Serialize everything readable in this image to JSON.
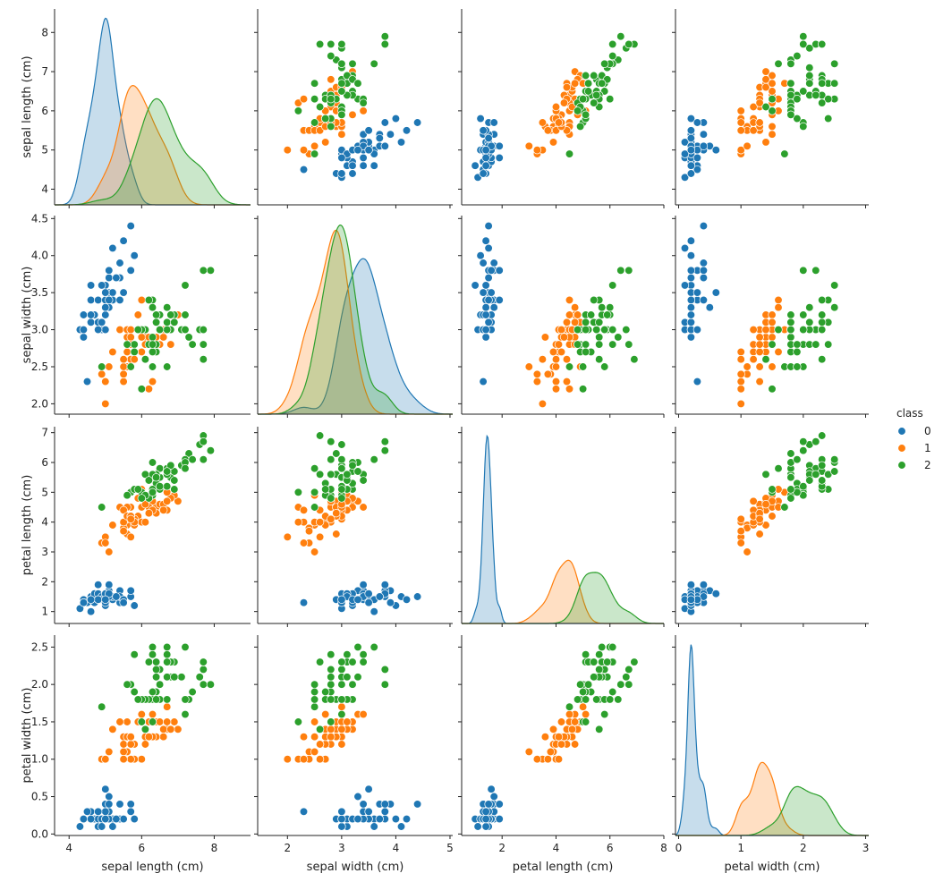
{
  "chart_data": {
    "type": "pairplot",
    "variables": [
      "sepal length (cm)",
      "sepal width (cm)",
      "petal length (cm)",
      "petal width (cm)"
    ],
    "diagonal": "kde",
    "offdiagonal": "scatter",
    "axis_ranges": [
      [
        3.6,
        8.6
      ],
      [
        1.86,
        4.54
      ],
      [
        0.6,
        7.2
      ],
      [
        -0.02,
        2.66
      ]
    ],
    "ticks": [
      [
        4,
        5,
        6,
        7,
        8
      ],
      [
        2.0,
        2.5,
        3.0,
        3.5,
        4.0,
        4.5
      ],
      [
        1,
        2,
        3,
        4,
        5,
        6,
        7
      ],
      [
        0.0,
        0.5,
        1.0,
        1.5,
        2.0,
        2.5
      ]
    ],
    "x_ticks": [
      [
        4,
        6,
        8
      ],
      [
        2,
        3,
        4,
        5
      ],
      [
        2,
        4,
        6,
        8
      ],
      [
        0,
        1,
        2,
        3
      ]
    ],
    "x_limits": [
      [
        3.6,
        9.0
      ],
      [
        1.45,
        5.05
      ],
      [
        0.5,
        8.0
      ],
      [
        -0.05,
        3.05
      ]
    ],
    "legend": {
      "title": "class",
      "placement": "right",
      "entries": [
        {
          "label": "0",
          "color": "#1f77b4"
        },
        {
          "label": "1",
          "color": "#ff7f0e"
        },
        {
          "label": "2",
          "color": "#2ca02c"
        }
      ]
    },
    "series": [
      {
        "class": "0",
        "color": "#1f77b4",
        "points": [
          [
            5.1,
            3.5,
            1.4,
            0.2
          ],
          [
            4.9,
            3.0,
            1.4,
            0.2
          ],
          [
            4.7,
            3.2,
            1.3,
            0.2
          ],
          [
            4.6,
            3.1,
            1.5,
            0.2
          ],
          [
            5.0,
            3.6,
            1.4,
            0.2
          ],
          [
            5.4,
            3.9,
            1.7,
            0.4
          ],
          [
            4.6,
            3.4,
            1.4,
            0.3
          ],
          [
            5.0,
            3.4,
            1.5,
            0.2
          ],
          [
            4.4,
            2.9,
            1.4,
            0.2
          ],
          [
            4.9,
            3.1,
            1.5,
            0.1
          ],
          [
            5.4,
            3.7,
            1.5,
            0.2
          ],
          [
            4.8,
            3.4,
            1.6,
            0.2
          ],
          [
            4.8,
            3.0,
            1.4,
            0.1
          ],
          [
            4.3,
            3.0,
            1.1,
            0.1
          ],
          [
            5.8,
            4.0,
            1.2,
            0.2
          ],
          [
            5.7,
            4.4,
            1.5,
            0.4
          ],
          [
            5.4,
            3.9,
            1.3,
            0.4
          ],
          [
            5.1,
            3.5,
            1.4,
            0.3
          ],
          [
            5.7,
            3.8,
            1.7,
            0.3
          ],
          [
            5.1,
            3.8,
            1.5,
            0.3
          ],
          [
            5.4,
            3.4,
            1.7,
            0.2
          ],
          [
            5.1,
            3.7,
            1.5,
            0.4
          ],
          [
            4.6,
            3.6,
            1.0,
            0.2
          ],
          [
            5.1,
            3.3,
            1.7,
            0.5
          ],
          [
            4.8,
            3.4,
            1.9,
            0.2
          ],
          [
            5.0,
            3.0,
            1.6,
            0.2
          ],
          [
            5.0,
            3.4,
            1.6,
            0.4
          ],
          [
            5.2,
            3.5,
            1.5,
            0.2
          ],
          [
            5.2,
            3.4,
            1.4,
            0.2
          ],
          [
            4.7,
            3.2,
            1.6,
            0.2
          ],
          [
            4.8,
            3.1,
            1.6,
            0.2
          ],
          [
            5.4,
            3.4,
            1.5,
            0.4
          ],
          [
            5.2,
            4.1,
            1.5,
            0.1
          ],
          [
            5.5,
            4.2,
            1.4,
            0.2
          ],
          [
            4.9,
            3.1,
            1.5,
            0.2
          ],
          [
            5.0,
            3.2,
            1.2,
            0.2
          ],
          [
            5.5,
            3.5,
            1.3,
            0.2
          ],
          [
            4.9,
            3.6,
            1.4,
            0.1
          ],
          [
            4.4,
            3.0,
            1.3,
            0.2
          ],
          [
            5.1,
            3.4,
            1.5,
            0.2
          ],
          [
            5.0,
            3.5,
            1.3,
            0.3
          ],
          [
            4.5,
            2.3,
            1.3,
            0.3
          ],
          [
            4.4,
            3.2,
            1.3,
            0.2
          ],
          [
            5.0,
            3.5,
            1.6,
            0.6
          ],
          [
            5.1,
            3.8,
            1.9,
            0.4
          ],
          [
            4.8,
            3.0,
            1.4,
            0.3
          ],
          [
            5.1,
            3.8,
            1.6,
            0.2
          ],
          [
            4.6,
            3.2,
            1.4,
            0.2
          ],
          [
            5.3,
            3.7,
            1.5,
            0.2
          ],
          [
            5.0,
            3.3,
            1.4,
            0.2
          ]
        ]
      },
      {
        "class": "1",
        "color": "#ff7f0e",
        "points": [
          [
            7.0,
            3.2,
            4.7,
            1.4
          ],
          [
            6.4,
            3.2,
            4.5,
            1.5
          ],
          [
            6.9,
            3.1,
            4.9,
            1.5
          ],
          [
            5.5,
            2.3,
            4.0,
            1.3
          ],
          [
            6.5,
            2.8,
            4.6,
            1.5
          ],
          [
            5.7,
            2.8,
            4.5,
            1.3
          ],
          [
            6.3,
            3.3,
            4.7,
            1.6
          ],
          [
            4.9,
            2.4,
            3.3,
            1.0
          ],
          [
            6.6,
            2.9,
            4.6,
            1.3
          ],
          [
            5.2,
            2.7,
            3.9,
            1.4
          ],
          [
            5.0,
            2.0,
            3.5,
            1.0
          ],
          [
            5.9,
            3.0,
            4.2,
            1.5
          ],
          [
            6.0,
            2.2,
            4.0,
            1.0
          ],
          [
            6.1,
            2.9,
            4.7,
            1.4
          ],
          [
            5.6,
            2.9,
            3.6,
            1.3
          ],
          [
            6.7,
            3.1,
            4.4,
            1.4
          ],
          [
            5.6,
            3.0,
            4.5,
            1.5
          ],
          [
            5.8,
            2.7,
            4.1,
            1.0
          ],
          [
            6.2,
            2.2,
            4.5,
            1.5
          ],
          [
            5.6,
            2.5,
            3.9,
            1.1
          ],
          [
            5.9,
            3.2,
            4.8,
            1.8
          ],
          [
            6.1,
            2.8,
            4.0,
            1.3
          ],
          [
            6.3,
            2.5,
            4.9,
            1.5
          ],
          [
            6.1,
            2.8,
            4.7,
            1.2
          ],
          [
            6.4,
            2.9,
            4.3,
            1.3
          ],
          [
            6.6,
            3.0,
            4.4,
            1.4
          ],
          [
            6.8,
            2.8,
            4.8,
            1.4
          ],
          [
            6.7,
            3.0,
            5.0,
            1.7
          ],
          [
            6.0,
            2.9,
            4.5,
            1.5
          ],
          [
            5.7,
            2.6,
            3.5,
            1.0
          ],
          [
            5.5,
            2.4,
            3.8,
            1.1
          ],
          [
            5.5,
            2.4,
            3.7,
            1.0
          ],
          [
            5.8,
            2.7,
            3.9,
            1.2
          ],
          [
            6.0,
            2.7,
            5.1,
            1.6
          ],
          [
            5.4,
            3.0,
            4.5,
            1.5
          ],
          [
            6.0,
            3.4,
            4.5,
            1.6
          ],
          [
            6.7,
            3.1,
            4.7,
            1.5
          ],
          [
            6.3,
            2.3,
            4.4,
            1.3
          ],
          [
            5.6,
            3.0,
            4.1,
            1.3
          ],
          [
            5.5,
            2.5,
            4.0,
            1.3
          ],
          [
            5.5,
            2.6,
            4.4,
            1.2
          ],
          [
            6.1,
            3.0,
            4.6,
            1.4
          ],
          [
            5.8,
            2.6,
            4.0,
            1.2
          ],
          [
            5.0,
            2.3,
            3.3,
            1.0
          ],
          [
            5.6,
            2.7,
            4.2,
            1.3
          ],
          [
            5.7,
            3.0,
            4.2,
            1.2
          ],
          [
            5.7,
            2.9,
            4.2,
            1.3
          ],
          [
            6.2,
            2.9,
            4.3,
            1.3
          ],
          [
            5.1,
            2.5,
            3.0,
            1.1
          ],
          [
            5.7,
            2.8,
            4.1,
            1.3
          ]
        ]
      },
      {
        "class": "2",
        "color": "#2ca02c",
        "points": [
          [
            6.3,
            3.3,
            6.0,
            2.5
          ],
          [
            5.8,
            2.7,
            5.1,
            1.9
          ],
          [
            7.1,
            3.0,
            5.9,
            2.1
          ],
          [
            6.3,
            2.9,
            5.6,
            1.8
          ],
          [
            6.5,
            3.0,
            5.8,
            2.2
          ],
          [
            7.6,
            3.0,
            6.6,
            2.1
          ],
          [
            4.9,
            2.5,
            4.5,
            1.7
          ],
          [
            7.3,
            2.9,
            6.3,
            1.8
          ],
          [
            6.7,
            2.5,
            5.8,
            1.8
          ],
          [
            7.2,
            3.6,
            6.1,
            2.5
          ],
          [
            6.5,
            3.2,
            5.1,
            2.0
          ],
          [
            6.4,
            2.7,
            5.3,
            1.9
          ],
          [
            6.8,
            3.0,
            5.5,
            2.1
          ],
          [
            5.7,
            2.5,
            5.0,
            2.0
          ],
          [
            5.8,
            2.8,
            5.1,
            2.4
          ],
          [
            6.4,
            3.2,
            5.3,
            2.3
          ],
          [
            6.5,
            3.0,
            5.5,
            1.8
          ],
          [
            7.7,
            3.8,
            6.7,
            2.2
          ],
          [
            7.7,
            2.6,
            6.9,
            2.3
          ],
          [
            6.0,
            2.2,
            5.0,
            1.5
          ],
          [
            6.9,
            3.2,
            5.7,
            2.3
          ],
          [
            5.6,
            2.8,
            4.9,
            2.0
          ],
          [
            7.7,
            2.8,
            6.7,
            2.0
          ],
          [
            6.3,
            2.7,
            4.9,
            1.8
          ],
          [
            6.7,
            3.3,
            5.7,
            2.1
          ],
          [
            7.2,
            3.2,
            6.0,
            1.8
          ],
          [
            6.2,
            2.8,
            4.8,
            1.8
          ],
          [
            6.1,
            3.0,
            4.9,
            1.8
          ],
          [
            6.4,
            2.8,
            5.6,
            2.1
          ],
          [
            7.2,
            3.0,
            5.8,
            1.6
          ],
          [
            7.4,
            2.8,
            6.1,
            1.9
          ],
          [
            7.9,
            3.8,
            6.4,
            2.0
          ],
          [
            6.4,
            2.8,
            5.6,
            2.2
          ],
          [
            6.3,
            2.8,
            5.1,
            1.5
          ],
          [
            6.1,
            2.6,
            5.6,
            1.4
          ],
          [
            7.7,
            3.0,
            6.1,
            2.3
          ],
          [
            6.3,
            3.4,
            5.6,
            2.4
          ],
          [
            6.4,
            3.1,
            5.5,
            1.8
          ],
          [
            6.0,
            3.0,
            4.8,
            1.8
          ],
          [
            6.9,
            3.1,
            5.4,
            2.1
          ],
          [
            6.7,
            3.1,
            5.6,
            2.4
          ],
          [
            6.9,
            3.1,
            5.1,
            2.3
          ],
          [
            5.8,
            2.7,
            5.1,
            1.9
          ],
          [
            6.8,
            3.2,
            5.9,
            2.3
          ],
          [
            6.7,
            3.3,
            5.7,
            2.5
          ],
          [
            6.7,
            3.0,
            5.2,
            2.3
          ],
          [
            6.3,
            2.5,
            5.0,
            1.9
          ],
          [
            6.5,
            3.0,
            5.2,
            2.0
          ],
          [
            6.2,
            3.4,
            5.4,
            2.3
          ],
          [
            5.9,
            3.0,
            5.1,
            1.8
          ]
        ]
      }
    ]
  }
}
